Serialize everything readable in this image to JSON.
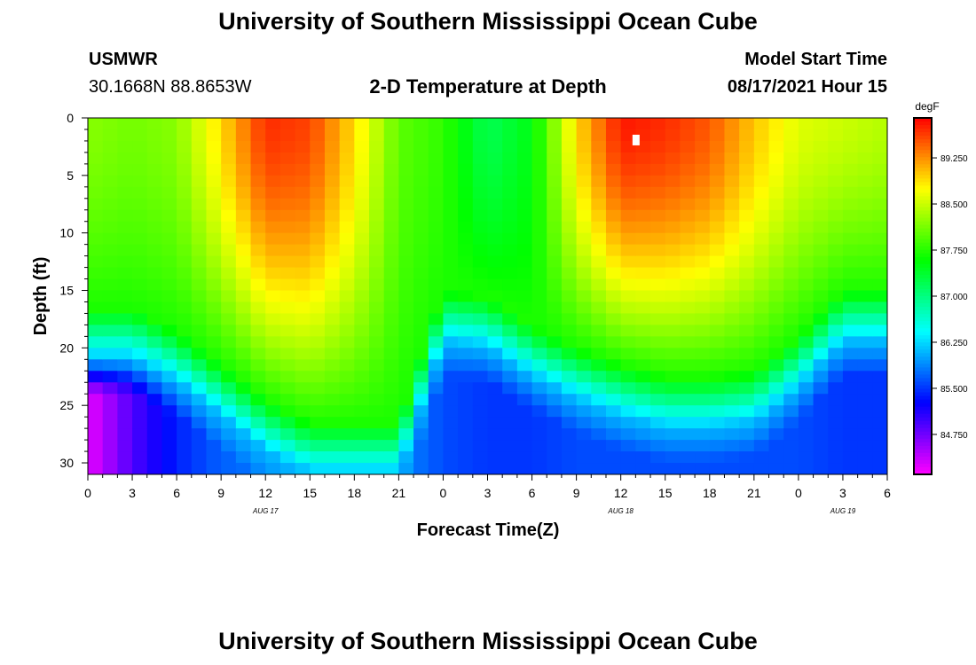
{
  "header": {
    "title": "University of Southern Mississippi Ocean Cube",
    "station_name": "USMWR",
    "station_coords": "30.1668N  88.8653W",
    "plot_title": "2-D Temperature at Depth",
    "model_label": "Model Start Time",
    "model_time": "08/17/2021 Hour 15"
  },
  "footer": {
    "title": "University of Southern Mississippi Ocean Cube"
  },
  "colors": {
    "background": "#ffffff",
    "axis": "#000000",
    "marker": "#ffffff"
  },
  "chart_data": {
    "type": "heatmap",
    "title": "2-D Temperature at Depth",
    "xlabel": "Forecast Time(Z)",
    "ylabel": "Depth (ft)",
    "xlim": [
      0,
      54
    ],
    "ylim": [
      0,
      31
    ],
    "x_ticks": [
      0,
      3,
      6,
      9,
      12,
      15,
      18,
      21,
      24,
      27,
      30,
      33,
      36,
      39,
      42,
      45,
      48,
      51,
      54
    ],
    "x_tick_labels": [
      "0",
      "3",
      "6",
      "9",
      "12",
      "15",
      "18",
      "21",
      "0",
      "3",
      "6",
      "9",
      "12",
      "15",
      "18",
      "21",
      "0",
      "3",
      "6"
    ],
    "y_ticks": [
      0,
      5,
      10,
      15,
      20,
      25,
      30
    ],
    "y_tick_labels": [
      "0",
      "5",
      "10",
      "15",
      "20",
      "25",
      "30"
    ],
    "date_labels": [
      {
        "label": "AUG 17",
        "x": 12
      },
      {
        "label": "AUG 18",
        "x": 36
      },
      {
        "label": "AUG 19",
        "x": 51
      }
    ],
    "colorbar": {
      "unit": "degF",
      "min": 84.1,
      "max": 89.9,
      "ticks": [
        89.25,
        88.5,
        87.75,
        87.0,
        86.25,
        85.5,
        84.75
      ],
      "tick_labels": [
        "89.250",
        "88.500",
        "87.750",
        "87.000",
        "86.250",
        "85.500",
        "84.750"
      ]
    },
    "surface_temp_by_hour": {
      "hours": [
        0,
        3,
        6,
        9,
        12,
        15,
        18,
        21,
        24,
        27,
        30,
        33,
        36,
        39,
        42,
        45,
        48,
        51,
        54
      ],
      "values": [
        88.2,
        88.1,
        88.2,
        88.9,
        89.7,
        89.6,
        88.9,
        88.0,
        87.8,
        87.2,
        87.5,
        88.9,
        89.8,
        89.7,
        89.5,
        89.0,
        88.6,
        88.5,
        88.4
      ]
    },
    "warm_core_bottom_depth_ft": {
      "hours": [
        0,
        3,
        6,
        9,
        12,
        15,
        18,
        21,
        24,
        27,
        30,
        33,
        36,
        39,
        42,
        45,
        48,
        51,
        54
      ],
      "values": [
        0,
        0,
        0,
        6,
        13,
        16,
        10,
        0,
        0,
        0,
        0,
        9,
        16,
        18,
        18,
        17,
        12,
        0,
        0
      ]
    },
    "thermocline_depth_ft": {
      "hours": [
        0,
        3,
        6,
        9,
        12,
        15,
        18,
        21,
        24,
        27,
        30,
        33,
        36,
        39,
        42,
        45,
        48,
        51,
        54
      ],
      "values": [
        19.5,
        19.5,
        21.5,
        24.5,
        27.5,
        29.5,
        29.5,
        29.5,
        18.0,
        18.5,
        21.0,
        23.0,
        24.5,
        25.5,
        25.5,
        25.0,
        22.0,
        18.0,
        18.0
      ]
    },
    "bottom_temp_by_hour": {
      "hours": [
        0,
        3,
        6,
        9,
        12,
        15,
        18,
        21,
        24,
        27,
        30,
        33,
        36,
        39,
        42,
        45,
        48,
        51,
        54
      ],
      "values": [
        84.2,
        84.9,
        85.4,
        85.7,
        85.8,
        85.9,
        85.9,
        85.9,
        85.6,
        85.5,
        85.5,
        85.6,
        85.6,
        85.6,
        85.6,
        85.6,
        85.6,
        85.5,
        85.5
      ]
    },
    "marker": {
      "hour": 37,
      "depth_ft": 2
    }
  }
}
